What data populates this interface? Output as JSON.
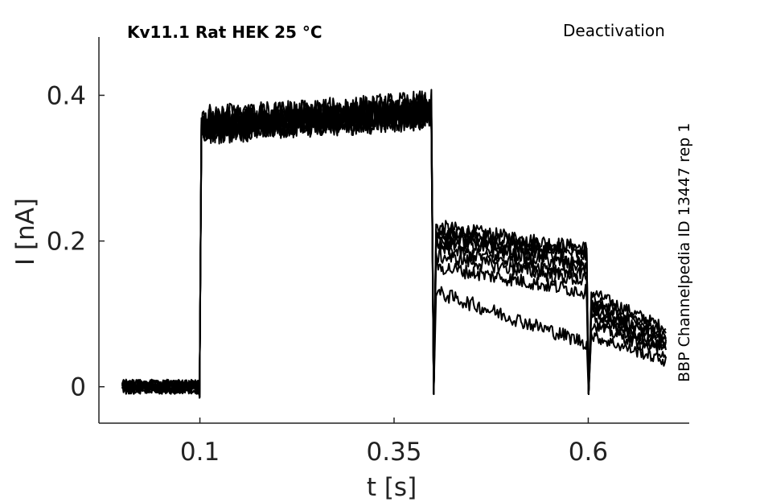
{
  "chart_data": {
    "type": "line",
    "title": "Kv11.1  Rat  HEK  25 °C",
    "protocol_label": "Deactivation",
    "side_label": "BBP Channelpedia ID 13447 rep 1",
    "xlabel": "t [s]",
    "ylabel": "I [nA]",
    "xlim": [
      -0.03,
      0.73
    ],
    "ylim": [
      -0.05,
      0.48
    ],
    "x_ticks": [
      {
        "value": 0.1,
        "label": "0.1"
      },
      {
        "value": 0.35,
        "label": "0.35"
      },
      {
        "value": 0.6,
        "label": "0.6"
      }
    ],
    "y_ticks": [
      {
        "value": 0,
        "label": "0"
      },
      {
        "value": 0.2,
        "label": "0.2"
      },
      {
        "value": 0.4,
        "label": "0.4"
      }
    ],
    "grid": false,
    "legend": "none",
    "line_color": "#000000",
    "step_times": [
      0.0,
      0.1,
      0.4,
      0.6,
      0.7
    ],
    "series": [
      {
        "values": [
          0.0,
          0.36,
          0.38,
          0.22,
          0.19,
          0.13,
          0.08
        ]
      },
      {
        "values": [
          0.0,
          0.35,
          0.37,
          0.215,
          0.185,
          0.12,
          0.075
        ]
      },
      {
        "values": [
          0.0,
          0.37,
          0.385,
          0.21,
          0.18,
          0.115,
          0.07
        ]
      },
      {
        "values": [
          0.0,
          0.36,
          0.38,
          0.205,
          0.17,
          0.11,
          0.065
        ]
      },
      {
        "values": [
          0.0,
          0.355,
          0.375,
          0.2,
          0.165,
          0.105,
          0.06
        ]
      },
      {
        "values": [
          0.0,
          0.365,
          0.39,
          0.19,
          0.155,
          0.1,
          0.055
        ]
      },
      {
        "values": [
          0.0,
          0.35,
          0.37,
          0.18,
          0.145,
          0.095,
          0.05
        ]
      },
      {
        "values": [
          0.0,
          0.36,
          0.38,
          0.165,
          0.13,
          0.085,
          0.045
        ]
      },
      {
        "values": [
          0.0,
          0.355,
          0.375,
          0.13,
          0.06,
          0.07,
          0.035
        ]
      }
    ]
  }
}
